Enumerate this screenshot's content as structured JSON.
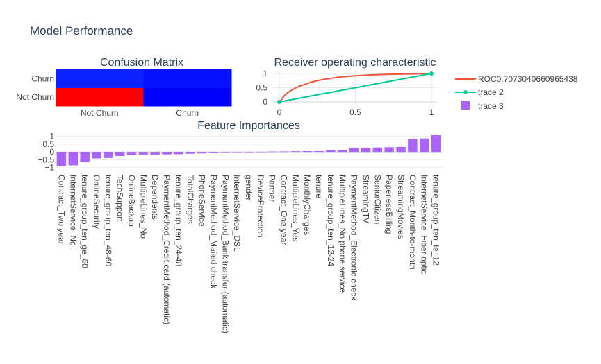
{
  "figure": {
    "title": "Model Performance"
  },
  "colors": {
    "roc_line": "#EF553B",
    "diagonal_line": "#00CC96",
    "bar": "#AB63FA",
    "grid": "#e8e8ee",
    "zeroline": "#cfcfdc",
    "heatmap_low": "#0000ff",
    "heatmap_high": "#ff0000"
  },
  "chart_data": [
    {
      "type": "heatmap",
      "title": "Confusion Matrix",
      "x": [
        "Not Churn",
        "Churn"
      ],
      "y": [
        "Not Churn",
        "Churn"
      ],
      "z": [
        [
          1000,
          85
        ],
        [
          215,
          150
        ]
      ],
      "colorscale": "bluered"
    },
    {
      "type": "line",
      "title": "Receiver operating characteristic",
      "xlim": [
        0,
        1
      ],
      "ylim": [
        0,
        1
      ],
      "xticks": [
        0,
        0.5,
        1
      ],
      "xtick_labels": [
        "0",
        "0.5",
        "1"
      ],
      "yticks": [
        0,
        0.5,
        1
      ],
      "ytick_labels": [
        "0",
        "0.5",
        "1"
      ],
      "series": [
        {
          "name": "ROC0.7073040660965438",
          "mode": "lines",
          "x": [
            0,
            0.01,
            0.02,
            0.03,
            0.05,
            0.07,
            0.1,
            0.13,
            0.17,
            0.2,
            0.25,
            0.3,
            0.35,
            0.4,
            0.45,
            0.5,
            0.55,
            0.6,
            0.65,
            0.7,
            0.75,
            0.8,
            0.85,
            0.9,
            0.95,
            1
          ],
          "y": [
            0,
            0.05,
            0.12,
            0.2,
            0.3,
            0.38,
            0.47,
            0.55,
            0.62,
            0.68,
            0.75,
            0.8,
            0.84,
            0.88,
            0.9,
            0.92,
            0.935,
            0.95,
            0.96,
            0.97,
            0.975,
            0.98,
            0.985,
            0.99,
            0.995,
            1
          ]
        },
        {
          "name": "trace 2",
          "mode": "lines+markers",
          "x": [
            0,
            1
          ],
          "y": [
            0,
            1
          ]
        }
      ]
    },
    {
      "type": "bar",
      "title": "Feature Importances",
      "ylim": [
        -1.15,
        1.2
      ],
      "yticks": [
        -1,
        -0.5,
        0,
        0.5,
        1
      ],
      "ytick_labels": [
        "−1",
        "−0.5",
        "0",
        "0.5",
        "1"
      ],
      "series": [
        {
          "name": "trace 3"
        }
      ],
      "categories": [
        "Contract_Two year",
        "InternetService_No",
        "tenure_group_ten_ge_60",
        "OnlineSecurity",
        "tenure_group_ten_48-60",
        "TechSupport",
        "OnlineBackup",
        "MultipleLines_No",
        "Dependents",
        "PaymentMethod_Credit card (automatic)",
        "tenure_group_ten_24-48",
        "TotalCharges",
        "PhoneService",
        "PaymentMethod_Mailed check",
        "PaymentMethod_Bank transfer (automatic)",
        "InternetService_DSL",
        "gender",
        "DeviceProtection",
        "Partner",
        "Contract_One year",
        "MultipleLines_Yes",
        "MonthlyCharges",
        "tenure",
        "tenure_group_ten_12-24",
        "MultipleLines_No phone service",
        "PaymentMethod_Electronic check",
        "StreamingTV",
        "SeniorCitizen",
        "PaperlessBilling",
        "StreamingMovies",
        "Contract_Month-to-month",
        "InternetService_Fiber optic",
        "tenure_group_ten_le_12"
      ],
      "values": [
        -0.93,
        -0.86,
        -0.65,
        -0.42,
        -0.39,
        -0.26,
        -0.19,
        -0.17,
        -0.17,
        -0.16,
        -0.15,
        -0.12,
        -0.1,
        -0.07,
        -0.03,
        -0.01,
        -0.01,
        0.01,
        0.02,
        0.03,
        0.04,
        0.05,
        0.05,
        0.09,
        0.12,
        0.25,
        0.27,
        0.28,
        0.3,
        0.32,
        0.85,
        0.86,
        1.08
      ]
    }
  ],
  "legend": {
    "items": [
      {
        "label": "ROC0.7073040660965438",
        "kind": "line",
        "color": "#EF553B"
      },
      {
        "label": "trace 2",
        "kind": "line-marker",
        "color": "#00CC96"
      },
      {
        "label": "trace 3",
        "kind": "square",
        "color": "#AB63FA"
      }
    ]
  }
}
